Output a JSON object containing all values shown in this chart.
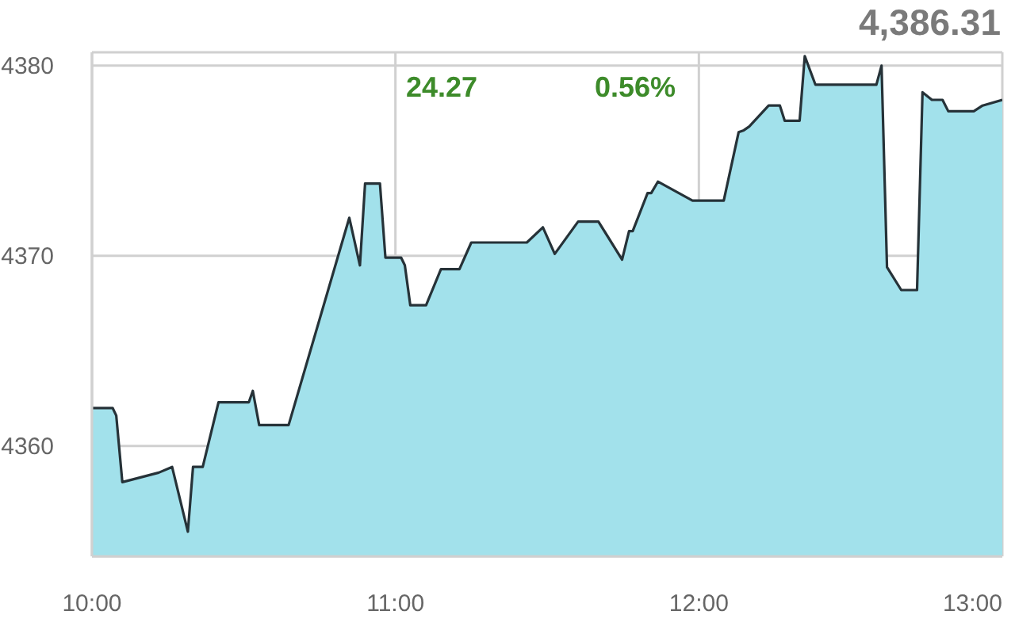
{
  "chart_data": {
    "type": "area",
    "title": "4,386.31",
    "annotations": [
      "24.27",
      "0.56%"
    ],
    "x": [
      10.0,
      10.068,
      10.08,
      10.1,
      10.22,
      10.264,
      10.316,
      10.333,
      10.365,
      10.417,
      10.517,
      10.53,
      10.551,
      10.648,
      10.848,
      10.883,
      10.9,
      10.949,
      10.967,
      11.019,
      11.031,
      11.049,
      11.101,
      11.15,
      11.211,
      11.25,
      11.433,
      11.486,
      11.525,
      11.602,
      11.669,
      11.747,
      11.77,
      11.782,
      11.831,
      11.843,
      11.865,
      11.979,
      12.082,
      12.131,
      12.148,
      12.166,
      12.23,
      12.267,
      12.283,
      12.332,
      12.349,
      12.384,
      12.585,
      12.602,
      12.62,
      12.667,
      12.719,
      12.737,
      12.768,
      12.803,
      12.822,
      12.906,
      12.935,
      13.0
    ],
    "series": [
      {
        "color": "#a2e1eb",
        "values": [
          4362.0,
          4362.0,
          4361.6,
          4358.1,
          4358.6,
          4358.9,
          4355.5,
          4358.9,
          4358.9,
          4362.3,
          4362.3,
          4362.9,
          4361.1,
          4361.1,
          4372.0,
          4369.5,
          4373.8,
          4373.8,
          4369.9,
          4369.9,
          4369.5,
          4367.4,
          4367.4,
          4369.3,
          4369.3,
          4370.7,
          4370.7,
          4371.5,
          4370.1,
          4371.8,
          4371.8,
          4369.8,
          4371.3,
          4371.3,
          4373.3,
          4373.3,
          4373.9,
          4372.9,
          4372.9,
          4376.5,
          4376.6,
          4376.8,
          4377.9,
          4377.9,
          4377.1,
          4377.1,
          4380.5,
          4379.0,
          4379.0,
          4380.0,
          4369.4,
          4368.2,
          4368.2,
          4378.6,
          4378.2,
          4378.2,
          4377.6,
          4377.6,
          4377.9,
          4378.2
        ]
      }
    ],
    "xlim": [
      10,
      13
    ],
    "xticks": [
      {
        "value": 10,
        "label": "10:00"
      },
      {
        "value": 11,
        "label": "11:00"
      },
      {
        "value": 12,
        "label": "12:00"
      },
      {
        "value": 13,
        "label": "13:00"
      }
    ],
    "ylim": [
      4354.2,
      4380.7
    ],
    "yticks": [
      4360,
      4370,
      4380
    ],
    "grid": true
  }
}
